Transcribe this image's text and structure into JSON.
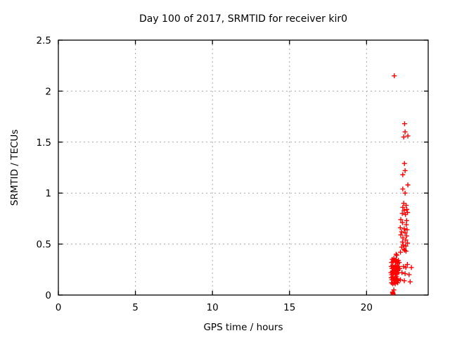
{
  "page": {
    "background": "#ffffff"
  },
  "chart_data": {
    "type": "scatter",
    "title": "Day 100 of 2017, SRMTID for receiver kir0",
    "xlabel": "GPS time / hours",
    "ylabel": "SRMTID / TECUs",
    "xlim": [
      0,
      24
    ],
    "ylim": [
      0,
      2.5
    ],
    "xticks": {
      "values": [
        0,
        5,
        10,
        15,
        20
      ],
      "labels": [
        "0",
        "5",
        "10",
        "15",
        "20"
      ]
    },
    "yticks": {
      "values": [
        0,
        0.5,
        1,
        1.5,
        2,
        2.5
      ],
      "labels": [
        "0",
        "0.5",
        "1",
        "1.5",
        "2",
        "2.5"
      ]
    },
    "grid": "dotted",
    "legend_position": "none",
    "marker": "plus",
    "colors": {
      "marker": "#ff0000",
      "grid": "#a8a8a8",
      "axis": "#000000",
      "text": "#000000",
      "background": "#ffffff"
    },
    "series": [
      {
        "name": "SRMTID",
        "points": [
          [
            21.8,
            2.15
          ],
          [
            22.47,
            1.68
          ],
          [
            22.5,
            1.6
          ],
          [
            22.41,
            1.55
          ],
          [
            22.68,
            1.56
          ],
          [
            22.46,
            1.29
          ],
          [
            22.5,
            1.22
          ],
          [
            22.35,
            1.18
          ],
          [
            22.68,
            1.08
          ],
          [
            22.35,
            1.04
          ],
          [
            22.5,
            1.0
          ],
          [
            22.41,
            0.9
          ],
          [
            22.57,
            0.88
          ],
          [
            22.35,
            0.86
          ],
          [
            22.61,
            0.84
          ],
          [
            22.44,
            0.83
          ],
          [
            22.66,
            0.81
          ],
          [
            22.32,
            0.8
          ],
          [
            22.52,
            0.79
          ],
          [
            22.22,
            0.74
          ],
          [
            22.6,
            0.73
          ],
          [
            22.33,
            0.71
          ],
          [
            22.58,
            0.69
          ],
          [
            22.19,
            0.66
          ],
          [
            22.44,
            0.65
          ],
          [
            22.63,
            0.64
          ],
          [
            22.28,
            0.62
          ],
          [
            22.5,
            0.61
          ],
          [
            22.22,
            0.59
          ],
          [
            22.6,
            0.58
          ],
          [
            22.36,
            0.56
          ],
          [
            22.54,
            0.54
          ],
          [
            22.33,
            0.52
          ],
          [
            22.66,
            0.51
          ],
          [
            22.38,
            0.49
          ],
          [
            22.55,
            0.48
          ],
          [
            22.28,
            0.47
          ],
          [
            22.42,
            0.45
          ],
          [
            22.47,
            0.44
          ],
          [
            22.56,
            0.43
          ],
          [
            22.2,
            0.42
          ],
          [
            21.92,
            0.4
          ],
          [
            21.96,
            0.39
          ],
          [
            21.62,
            0.32
          ],
          [
            21.67,
            0.35
          ],
          [
            21.72,
            0.33
          ],
          [
            21.77,
            0.36
          ],
          [
            21.82,
            0.34
          ],
          [
            21.87,
            0.32
          ],
          [
            21.92,
            0.35
          ],
          [
            21.97,
            0.33
          ],
          [
            22.02,
            0.31
          ],
          [
            22.07,
            0.34
          ],
          [
            22.12,
            0.32
          ],
          [
            22.65,
            0.3
          ],
          [
            21.6,
            0.28
          ],
          [
            21.65,
            0.26
          ],
          [
            21.7,
            0.29
          ],
          [
            21.75,
            0.27
          ],
          [
            21.8,
            0.25
          ],
          [
            21.85,
            0.28
          ],
          [
            21.9,
            0.26
          ],
          [
            21.95,
            0.29
          ],
          [
            22.0,
            0.27
          ],
          [
            22.05,
            0.25
          ],
          [
            22.1,
            0.28
          ],
          [
            22.15,
            0.26
          ],
          [
            22.4,
            0.28
          ],
          [
            22.55,
            0.27
          ],
          [
            22.91,
            0.27
          ],
          [
            21.58,
            0.22
          ],
          [
            21.63,
            0.2
          ],
          [
            21.68,
            0.23
          ],
          [
            21.73,
            0.21
          ],
          [
            21.78,
            0.24
          ],
          [
            21.83,
            0.22
          ],
          [
            21.88,
            0.2
          ],
          [
            21.93,
            0.23
          ],
          [
            21.98,
            0.21
          ],
          [
            22.03,
            0.24
          ],
          [
            22.08,
            0.22
          ],
          [
            22.3,
            0.22
          ],
          [
            22.5,
            0.21
          ],
          [
            22.76,
            0.2
          ],
          [
            21.6,
            0.17
          ],
          [
            21.65,
            0.15
          ],
          [
            21.7,
            0.18
          ],
          [
            21.75,
            0.16
          ],
          [
            21.8,
            0.14
          ],
          [
            21.85,
            0.17
          ],
          [
            21.9,
            0.15
          ],
          [
            21.95,
            0.18
          ],
          [
            22.0,
            0.16
          ],
          [
            22.05,
            0.14
          ],
          [
            22.2,
            0.15
          ],
          [
            22.45,
            0.14
          ],
          [
            21.62,
            0.12
          ],
          [
            21.7,
            0.11
          ],
          [
            21.78,
            0.12
          ],
          [
            21.86,
            0.11
          ],
          [
            21.94,
            0.13
          ],
          [
            22.02,
            0.12
          ],
          [
            22.83,
            0.13
          ],
          [
            21.77,
            0.05
          ],
          [
            21.7,
            0.03
          ],
          [
            21.69,
            0.02
          ],
          [
            21.71,
            0.015
          ],
          [
            21.73,
            0.01
          ]
        ]
      }
    ]
  }
}
